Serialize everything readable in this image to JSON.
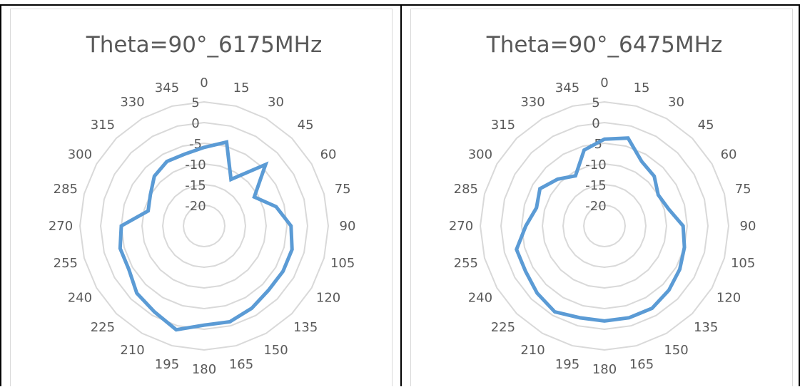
{
  "chart_data": [
    {
      "type": "radar",
      "title": "Theta=90°_6175MHz",
      "categories": [
        "0",
        "15",
        "30",
        "45",
        "60",
        "75",
        "90",
        "105",
        "120",
        "135",
        "150",
        "165",
        "180",
        "195",
        "210",
        "225",
        "240",
        "255",
        "270",
        "285",
        "300",
        "315",
        "330",
        "345"
      ],
      "radial_ticks": [
        "5",
        "0",
        "-5",
        "-10",
        "-15",
        "-20"
      ],
      "rlim": [
        -25,
        5
      ],
      "grid": true,
      "series": [
        {
          "values": [
            -6,
            -4,
            -12,
            -4,
            -11,
            -7,
            -4,
            -3,
            -3,
            -3,
            -2,
            -1,
            -1,
            1,
            -1,
            -2,
            -4,
            -4,
            -5,
            -11,
            -10,
            -8,
            -7,
            -7
          ],
          "color": "#5b9bd5"
        }
      ]
    },
    {
      "type": "radar",
      "title": "Theta=90°_6475MHz",
      "categories": [
        "0",
        "15",
        "30",
        "45",
        "60",
        "75",
        "90",
        "105",
        "120",
        "135",
        "150",
        "165",
        "180",
        "195",
        "210",
        "225",
        "240",
        "255",
        "270",
        "285",
        "300",
        "315",
        "330",
        "345"
      ],
      "radial_ticks": [
        "5",
        "0",
        "-5",
        "-10",
        "-15",
        "-20"
      ],
      "rlim": [
        -25,
        5
      ],
      "grid": true,
      "series": [
        {
          "values": [
            -4,
            -3,
            -7,
            -8,
            -10,
            -9,
            -6,
            -5,
            -4,
            -3,
            -2,
            -2,
            -2,
            -2,
            -1,
            -2,
            -3,
            -3,
            -6,
            -8,
            -7,
            -9,
            -11,
            -6
          ],
          "color": "#5b9bd5"
        }
      ]
    }
  ]
}
